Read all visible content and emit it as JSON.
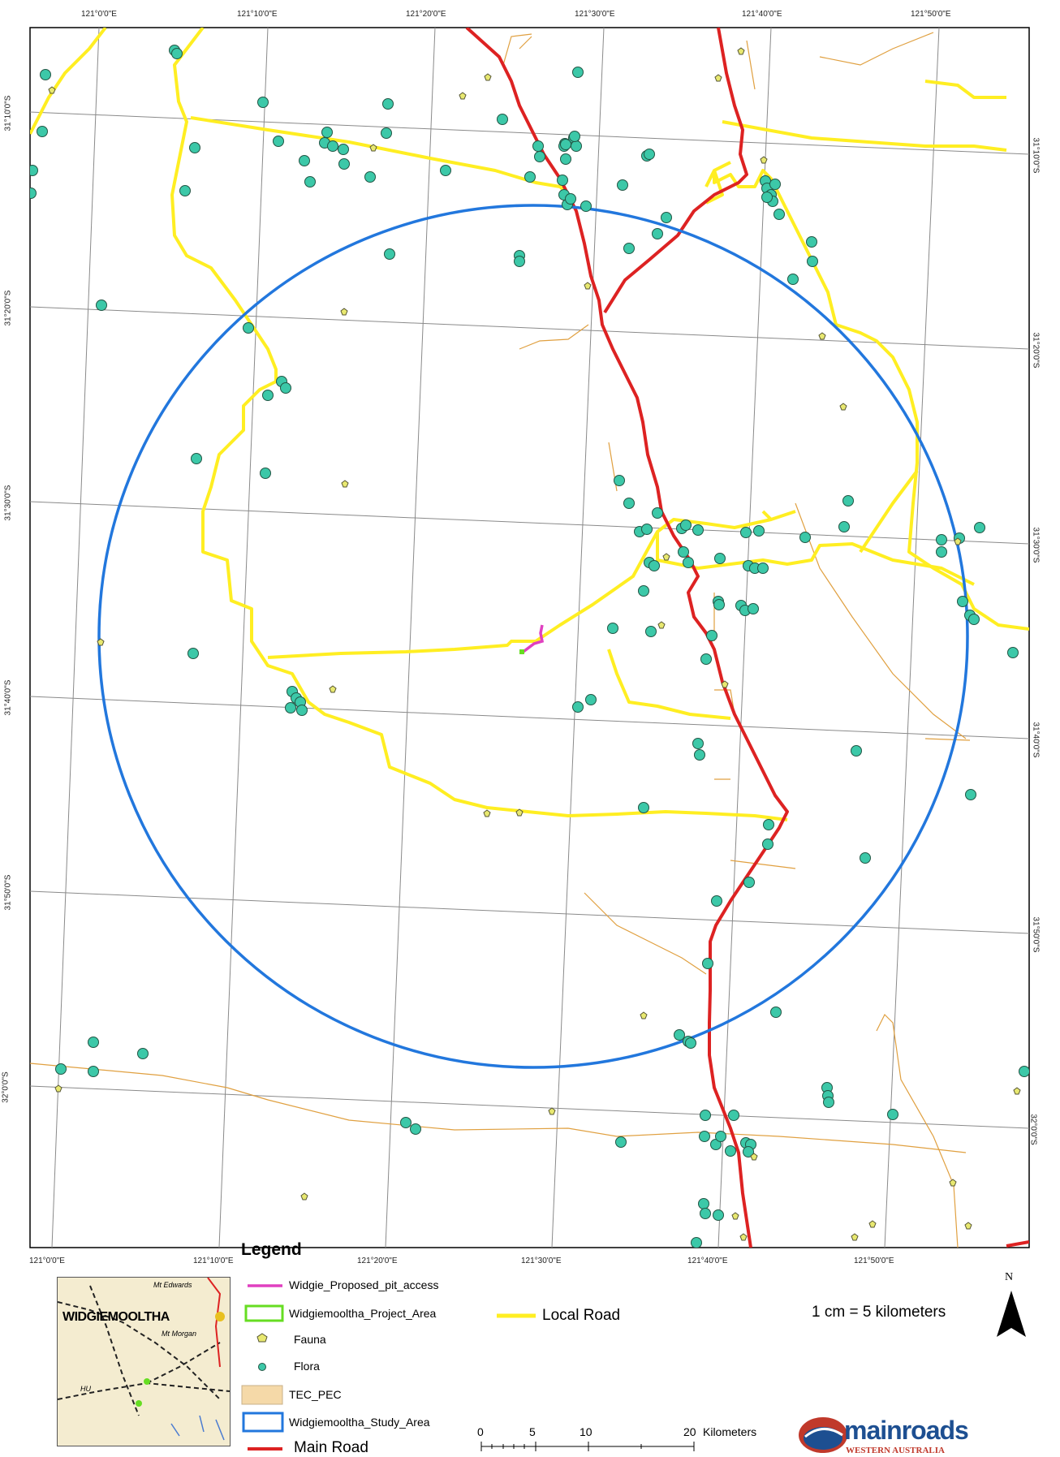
{
  "ticks_top": [
    "121°0'0\"E",
    "121°10'0\"E",
    "121°20'0\"E",
    "121°30'0\"E",
    "121°40'0\"E",
    "121°50'0\"E"
  ],
  "ticks_bottom": [
    "121°0'0\"E",
    "121°10'0\"E",
    "121°20'0\"E",
    "121°30'0\"E",
    "121°40'0\"E",
    "121°50'0\"E"
  ],
  "ticks_left": [
    "31°10'0\"S",
    "31°20'0\"S",
    "31°30'0\"S",
    "31°40'0\"S",
    "31°50'0\"S",
    "32°0'0\"S"
  ],
  "ticks_right": [
    "31°10'0\"S",
    "31°20'0\"S",
    "31°30'0\"S",
    "31°40'0\"S",
    "31°50'0\"S",
    "32°0'0\"S"
  ],
  "legend": {
    "title": "Legend",
    "items": [
      {
        "label": "Widgie_Proposed_pit_access",
        "symbol": "line",
        "color": "#e040c0"
      },
      {
        "label": "Widgiemooltha_Project_Area",
        "symbol": "box",
        "color": "#66dd22"
      },
      {
        "label": "Fauna",
        "symbol": "pentagon",
        "color": "#e8e870"
      },
      {
        "label": "Flora",
        "symbol": "circle",
        "color": "#3cc8a8"
      },
      {
        "label": "TEC_PEC",
        "symbol": "fill",
        "color": "#f5d9a8"
      },
      {
        "label": "Widgiemooltha_Study_Area",
        "symbol": "box",
        "color": "#2277dd"
      },
      {
        "label": "Main Road",
        "symbol": "line",
        "color": "#dd2222"
      },
      {
        "label": "Local Road",
        "symbol": "line",
        "color": "#ffee22"
      }
    ]
  },
  "scale": {
    "text": "1 cm = 5 kilometers",
    "bar_labels": [
      "0",
      "5",
      "10",
      "20"
    ],
    "bar_unit": "Kilometers"
  },
  "north": {
    "letter": "N",
    "icon": "north-arrow-icon"
  },
  "inset": {
    "town_label": "WIDGIEMOOLTHA",
    "place_labels": [
      "Mt Edwards",
      "Mt Morgan",
      "HU"
    ]
  },
  "logo": {
    "main": "mainroads",
    "sub": "WESTERN AUSTRALIA",
    "icon": "mainroads-logo-icon"
  },
  "colors": {
    "main_road": "#dd2222",
    "local_road": "#ffee22",
    "minor_road": "#e0a040",
    "study_area": "#2277dd",
    "pit_access": "#e040c0",
    "flora": "#3cc8a8",
    "fauna": "#e8e870",
    "graticule": "#8a8a8a"
  }
}
